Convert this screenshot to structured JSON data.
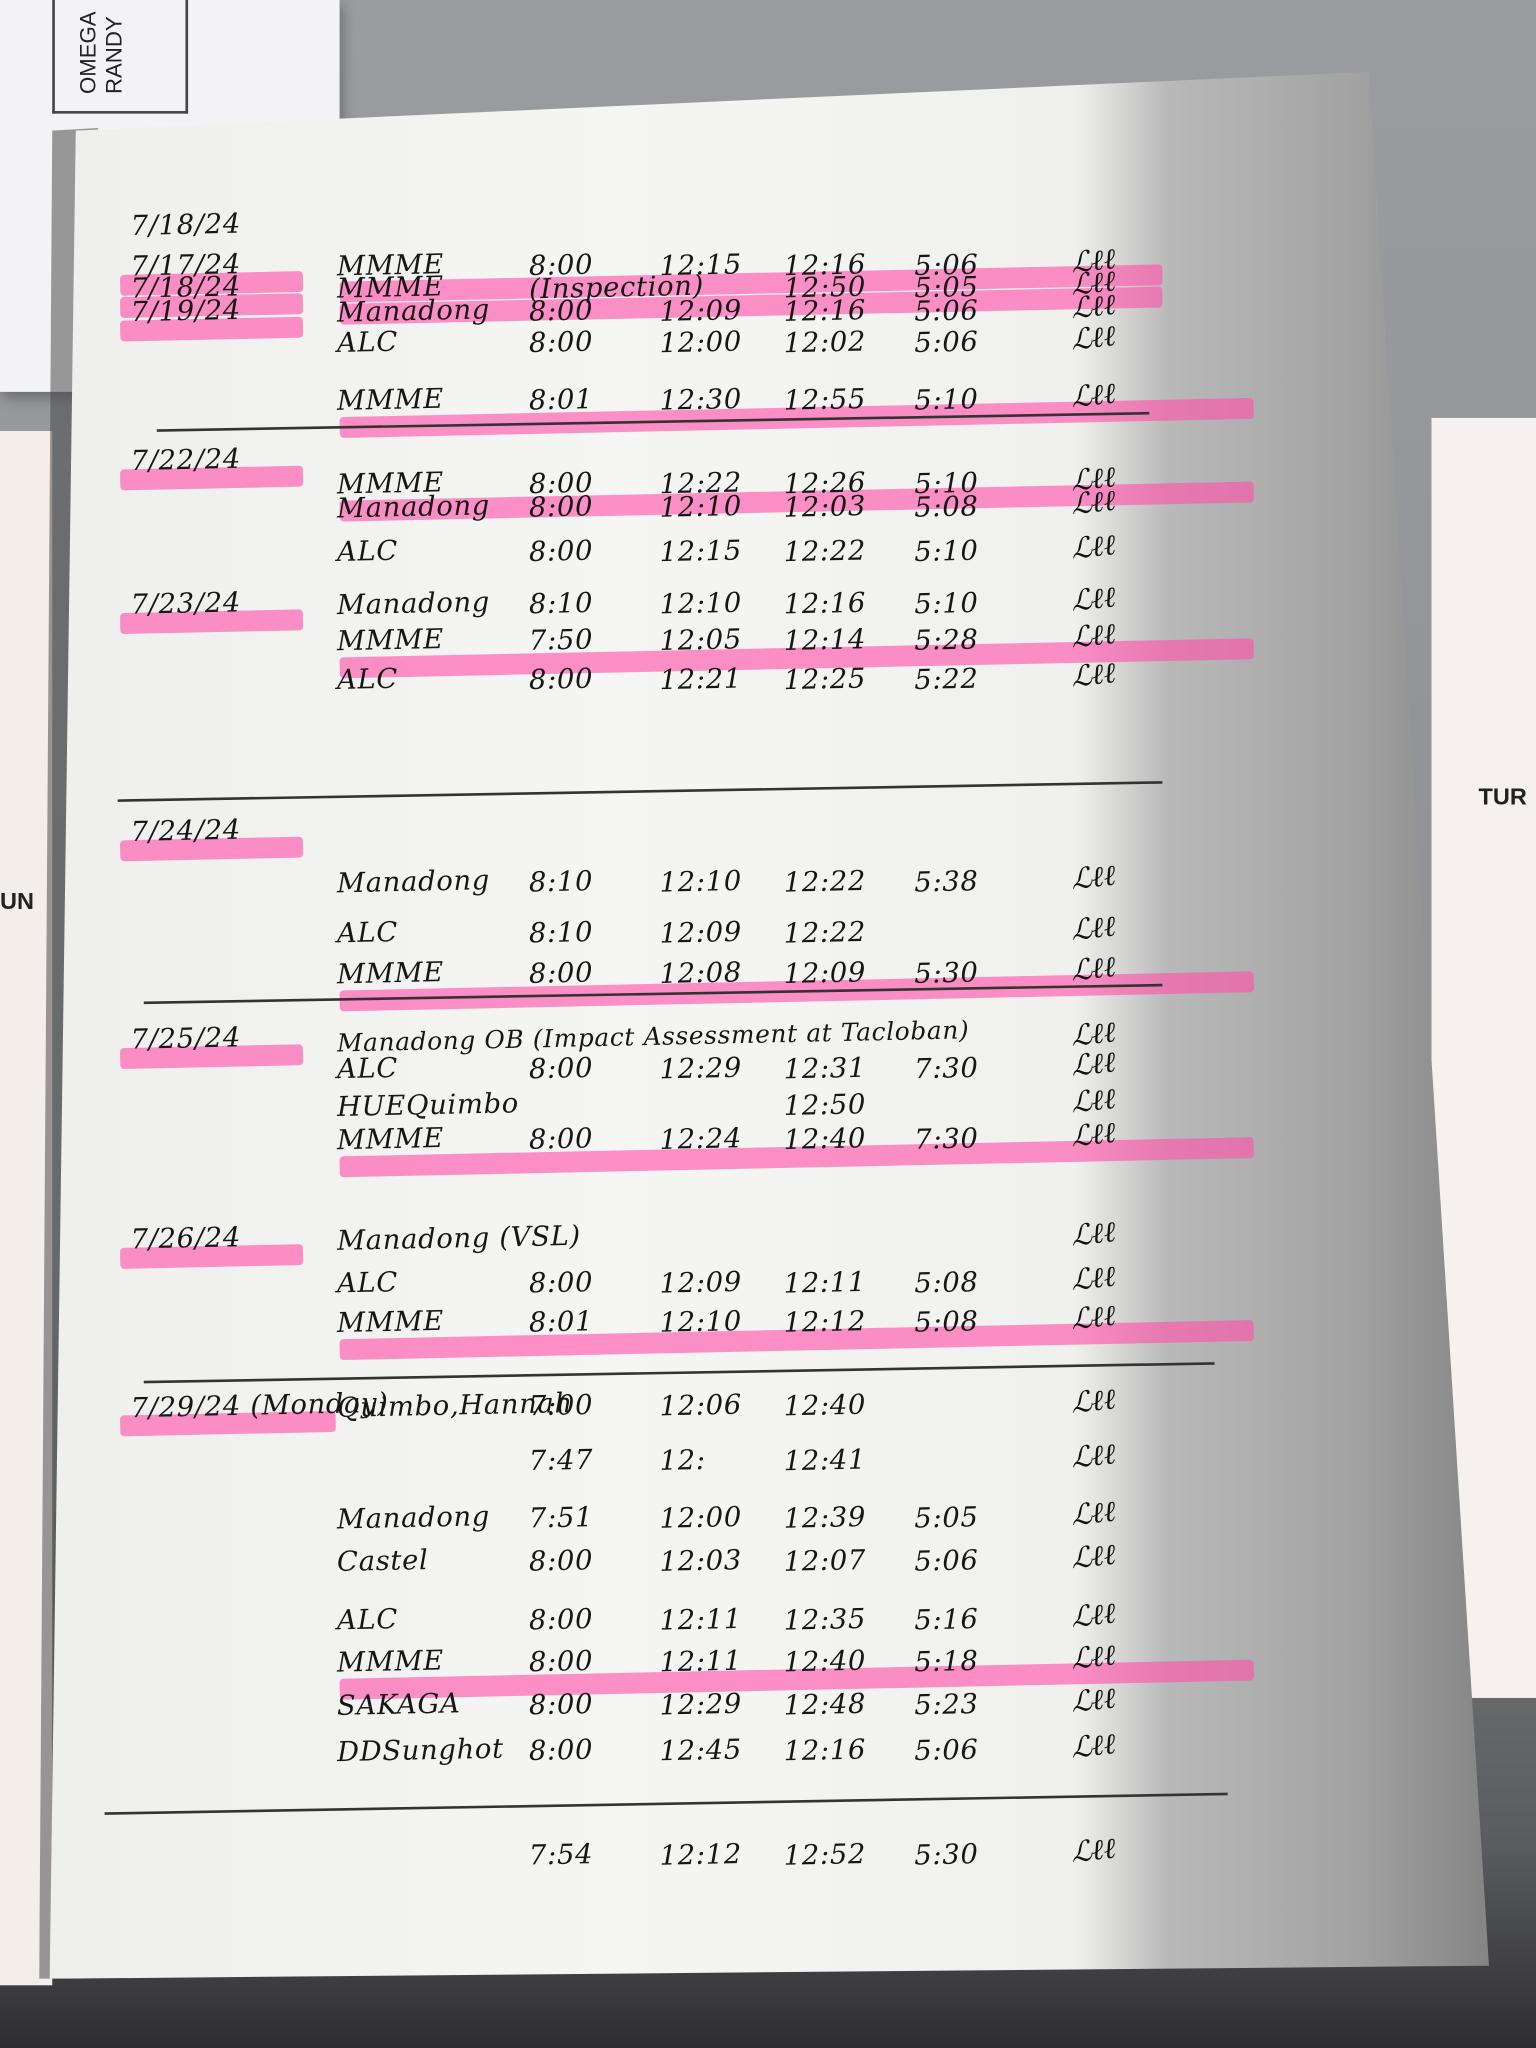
{
  "folder": {
    "label": "OMEGA\nRANDY"
  },
  "side_labels": {
    "left": "UN",
    "right": "TUR"
  },
  "colors": {
    "highlighter": "#ff50aa",
    "ink": "#161616",
    "paper": "#f5f5f3"
  },
  "log": {
    "entries": [
      {
        "date": "7/18/24",
        "name": "",
        "time_in": "",
        "lunch_out": "",
        "lunch_in": "",
        "time_out": "",
        "highlight": false
      },
      {
        "date": "7/17/24",
        "name": "MMME",
        "time_in": "8:00",
        "lunch_out": "12:15",
        "lunch_in": "12:16",
        "time_out": "5:06",
        "highlight": true
      },
      {
        "date": "7/18/24",
        "name": "MMME",
        "time_in": "(Inspection)",
        "lunch_out": "",
        "lunch_in": "12:50",
        "time_out": "5:05",
        "highlight": true
      },
      {
        "date": "7/19/24",
        "name": "Manadong",
        "time_in": "8:00",
        "lunch_out": "12:09",
        "lunch_in": "12:16",
        "time_out": "5:06",
        "highlight": false
      },
      {
        "date": "",
        "name": "ALC",
        "time_in": "8:00",
        "lunch_out": "12:00",
        "lunch_in": "12:02",
        "time_out": "5:06",
        "highlight": false
      },
      {
        "date": "",
        "name": "MMME",
        "time_in": "8:01",
        "lunch_out": "12:30",
        "lunch_in": "12:55",
        "time_out": "5:10",
        "highlight": true
      },
      {
        "date": "7/22/24",
        "name": "",
        "time_in": "",
        "lunch_out": "",
        "lunch_in": "",
        "time_out": "",
        "highlight": false
      },
      {
        "date": "",
        "name": "MMME",
        "time_in": "8:00",
        "lunch_out": "12:22",
        "lunch_in": "12:26",
        "time_out": "5:10",
        "highlight": true
      },
      {
        "date": "",
        "name": "Manadong",
        "time_in": "8:00",
        "lunch_out": "12:10",
        "lunch_in": "12:03",
        "time_out": "5:08",
        "highlight": false
      },
      {
        "date": "",
        "name": "ALC",
        "time_in": "8:00",
        "lunch_out": "12:15",
        "lunch_in": "12:22",
        "time_out": "5:10",
        "highlight": false
      },
      {
        "date": "7/23/24",
        "name": "Manadong",
        "time_in": "8:10",
        "lunch_out": "12:10",
        "lunch_in": "12:16",
        "time_out": "5:10",
        "highlight": false
      },
      {
        "date": "",
        "name": "MMME",
        "time_in": "7:50",
        "lunch_out": "12:05",
        "lunch_in": "12:14",
        "time_out": "5:28",
        "highlight": true
      },
      {
        "date": "",
        "name": "ALC",
        "time_in": "8:00",
        "lunch_out": "12:21",
        "lunch_in": "12:25",
        "time_out": "5:22",
        "highlight": false
      },
      {
        "date": "7/24/24",
        "name": "",
        "time_in": "",
        "lunch_out": "",
        "lunch_in": "",
        "time_out": "",
        "highlight": false
      },
      {
        "date": "",
        "name": "Manadong",
        "time_in": "8:10",
        "lunch_out": "12:10",
        "lunch_in": "12:22",
        "time_out": "5:38",
        "highlight": false
      },
      {
        "date": "",
        "name": "ALC",
        "time_in": "8:10",
        "lunch_out": "12:09",
        "lunch_in": "12:22",
        "time_out": "",
        "highlight": false
      },
      {
        "date": "",
        "name": "MMME",
        "time_in": "8:00",
        "lunch_out": "12:08",
        "lunch_in": "12:09",
        "time_out": "5:30",
        "highlight": true
      },
      {
        "date": "7/25/24",
        "name": "Manadong OB (Impact Assessment at Tacloban)",
        "time_in": "",
        "lunch_out": "",
        "lunch_in": "",
        "time_out": "",
        "highlight": false
      },
      {
        "date": "",
        "name": "ALC",
        "time_in": "8:00",
        "lunch_out": "12:29",
        "lunch_in": "12:31",
        "time_out": "7:30",
        "highlight": false
      },
      {
        "date": "",
        "name": "HUEQuimbo",
        "time_in": "",
        "lunch_out": "",
        "lunch_in": "12:50",
        "time_out": "",
        "highlight": false
      },
      {
        "date": "",
        "name": "MMME",
        "time_in": "8:00",
        "lunch_out": "12:24",
        "lunch_in": "12:40",
        "time_out": "7:30",
        "highlight": true
      },
      {
        "date": "7/26/24",
        "name": "Manadong (VSL)",
        "time_in": "",
        "lunch_out": "",
        "lunch_in": "",
        "time_out": "",
        "highlight": false
      },
      {
        "date": "",
        "name": "ALC",
        "time_in": "8:00",
        "lunch_out": "12:09",
        "lunch_in": "12:11",
        "time_out": "5:08",
        "highlight": false
      },
      {
        "date": "",
        "name": "MMME",
        "time_in": "8:01",
        "lunch_out": "12:10",
        "lunch_in": "12:12",
        "time_out": "5:08",
        "highlight": true
      },
      {
        "date": "7/29/24 (Monday)",
        "name": "Quimbo,Hannah",
        "time_in": "7:00",
        "lunch_out": "12:06",
        "lunch_in": "12:40",
        "time_out": "",
        "highlight": false
      },
      {
        "date": "",
        "name": "",
        "time_in": "7:47",
        "lunch_out": "12:",
        "lunch_in": "12:41",
        "time_out": "",
        "highlight": false
      },
      {
        "date": "",
        "name": "Manadong",
        "time_in": "7:51",
        "lunch_out": "12:00",
        "lunch_in": "12:39",
        "time_out": "5:05",
        "highlight": false
      },
      {
        "date": "",
        "name": "Castel",
        "time_in": "8:00",
        "lunch_out": "12:03",
        "lunch_in": "12:07",
        "time_out": "5:06",
        "highlight": false
      },
      {
        "date": "",
        "name": "ALC",
        "time_in": "8:00",
        "lunch_out": "12:11",
        "lunch_in": "12:35",
        "time_out": "5:16",
        "highlight": false
      },
      {
        "date": "",
        "name": "MMME",
        "time_in": "8:00",
        "lunch_out": "12:11",
        "lunch_in": "12:40",
        "time_out": "5:18",
        "highlight": true
      },
      {
        "date": "",
        "name": "SAKAGA",
        "time_in": "8:00",
        "lunch_out": "12:29",
        "lunch_in": "12:48",
        "time_out": "5:23",
        "highlight": false
      },
      {
        "date": "",
        "name": "DDSunghot",
        "time_in": "8:00",
        "lunch_out": "12:45",
        "lunch_in": "12:16",
        "time_out": "5:06",
        "highlight": false
      },
      {
        "date": "",
        "name": "",
        "time_in": "7:54",
        "lunch_out": "12:12",
        "lunch_in": "12:52",
        "time_out": "5:30",
        "highlight": false
      }
    ]
  }
}
